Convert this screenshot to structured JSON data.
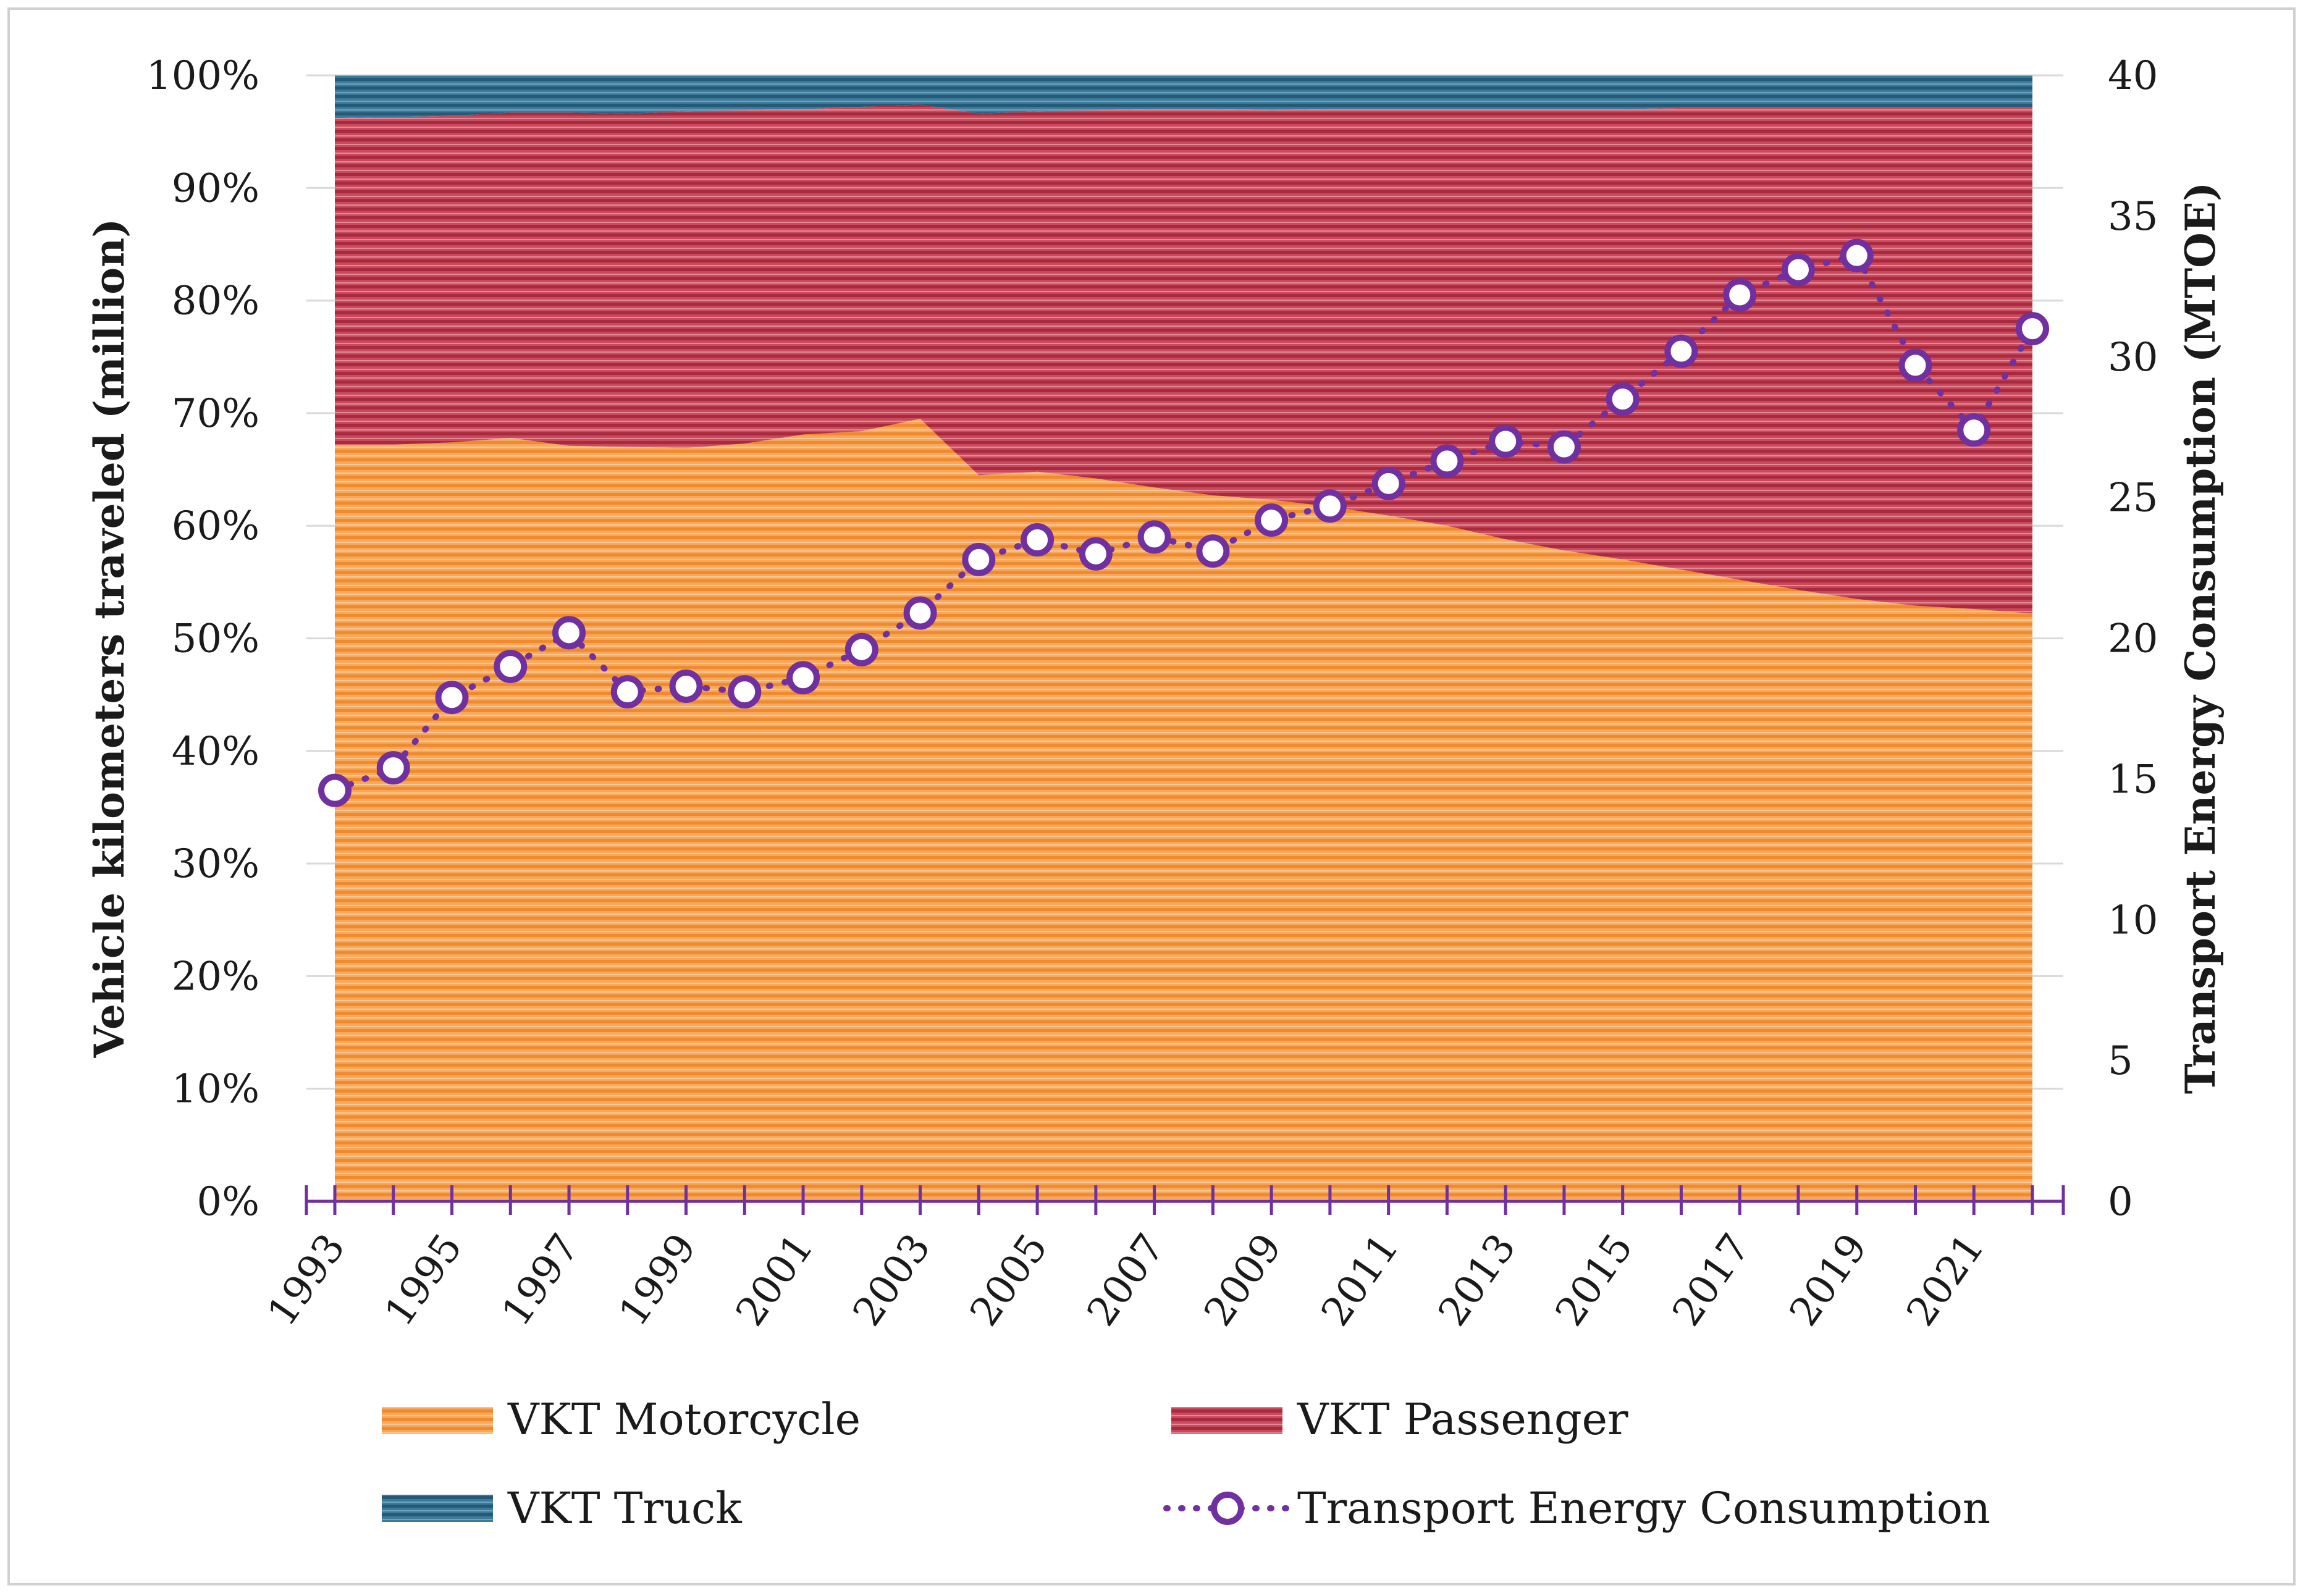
{
  "chart_data": {
    "type": "area",
    "stacked": "percent",
    "x": [
      1993,
      1994,
      1995,
      1996,
      1997,
      1998,
      1999,
      2000,
      2001,
      2002,
      2003,
      2004,
      2005,
      2006,
      2007,
      2008,
      2009,
      2010,
      2011,
      2012,
      2013,
      2014,
      2015,
      2016,
      2017,
      2018,
      2019,
      2020,
      2021,
      2022
    ],
    "x_tick_labels": [
      "1993",
      "1995",
      "1997",
      "1999",
      "2001",
      "2003",
      "2005",
      "2007",
      "2009",
      "2011",
      "2013",
      "2015",
      "2017",
      "2019",
      "2021"
    ],
    "y_tick_labels": [
      "0%",
      "10%",
      "20%",
      "30%",
      "40%",
      "50%",
      "60%",
      "70%",
      "80%",
      "90%",
      "100%"
    ],
    "y2_tick_labels": [
      "0",
      "5",
      "10",
      "15",
      "20",
      "25",
      "30",
      "35",
      "40"
    ],
    "ylabel": "Vehicle kilometers traveled (million)",
    "y2label": "Transport Energy Consumption (MTOE)",
    "ylim": [
      0,
      100
    ],
    "y2lim": [
      0,
      40
    ],
    "legend_position": "bottom",
    "series": [
      {
        "name": "VKT Motorcycle",
        "axis": "left",
        "color": "#f5a050",
        "values": [
          67.2,
          67.2,
          67.4,
          67.8,
          67.1,
          67.0,
          66.9,
          67.3,
          68.1,
          68.4,
          69.5,
          64.5,
          64.8,
          64.2,
          63.4,
          62.7,
          62.3,
          61.7,
          60.9,
          60.0,
          58.8,
          57.8,
          57.0,
          56.1,
          55.2,
          54.3,
          53.5,
          52.9,
          52.6,
          52.2
        ]
      },
      {
        "name": "VKT Passenger",
        "axis": "left",
        "color": "#c0394e",
        "values": [
          29.0,
          29.1,
          29.0,
          28.9,
          29.6,
          29.6,
          29.9,
          29.6,
          28.9,
          28.8,
          27.9,
          32.1,
          32.0,
          32.7,
          33.6,
          34.3,
          34.6,
          35.3,
          36.1,
          37.0,
          38.2,
          39.2,
          40.0,
          41.0,
          41.9,
          42.8,
          43.6,
          44.2,
          44.5,
          44.9
        ]
      },
      {
        "name": "VKT Truck",
        "axis": "left",
        "color": "#2e6e8e",
        "values": [
          3.8,
          3.7,
          3.6,
          3.3,
          3.3,
          3.4,
          3.2,
          3.1,
          3.0,
          2.8,
          2.6,
          3.4,
          3.2,
          3.1,
          3.0,
          3.0,
          3.1,
          3.0,
          3.0,
          3.0,
          3.0,
          3.0,
          3.0,
          2.9,
          2.9,
          2.9,
          2.9,
          2.9,
          2.9,
          2.9
        ]
      },
      {
        "name": "Transport Energy Consumption",
        "axis": "right",
        "type": "line",
        "style": "dotted-circle-markers",
        "color": "#7030a0",
        "values": [
          14.6,
          15.4,
          17.9,
          19.0,
          20.2,
          18.1,
          18.3,
          18.1,
          18.6,
          19.6,
          20.9,
          22.8,
          23.5,
          23.0,
          23.6,
          23.1,
          24.2,
          24.7,
          25.5,
          26.3,
          27.0,
          26.8,
          28.5,
          30.2,
          32.2,
          33.1,
          33.6,
          29.7,
          27.4,
          31.0
        ]
      }
    ]
  }
}
